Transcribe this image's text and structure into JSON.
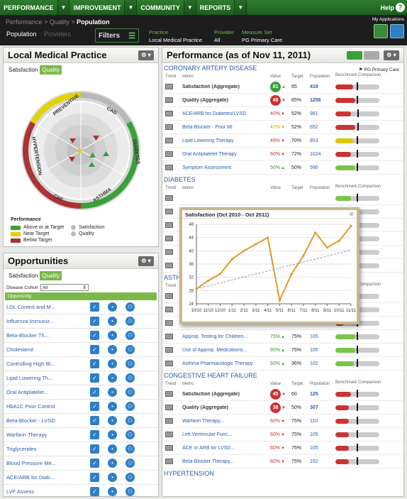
{
  "nav": {
    "items": [
      "PERFORMANCE",
      "IMPROVEMENT",
      "COMMUNITY",
      "REPORTS"
    ],
    "help": "Help",
    "help_icon": "?"
  },
  "breadcrumb": {
    "a": "Performance",
    "b": "Quality",
    "c": "Population"
  },
  "tabs": {
    "population": "Population",
    "providers": "Providers"
  },
  "filters": {
    "label": "Filters",
    "practice_label": "Practice",
    "practice_value": "Local Medical Practice",
    "provider_label": "Provider",
    "provider_value": "All",
    "measure_label": "Measure Set",
    "measure_value": "PG Primary Care"
  },
  "my_apps": "My Applications",
  "lmp": {
    "title": "Local Medical Practice",
    "tabs": [
      "Satisfaction",
      "Quality"
    ],
    "wheel_labels": [
      "PREVENTIVE",
      "CAD",
      "HYPERTENSION",
      "DIABETES",
      "CHF",
      "ASTHMA"
    ],
    "legend": {
      "title": "Performance",
      "above": "Above or at Target",
      "near": "Near Target",
      "below": "Below Target",
      "sat": "Satisfaction",
      "qual": "Quality"
    }
  },
  "opp": {
    "title": "Opportunities",
    "tabs": [
      "Satisfaction",
      "Quality"
    ],
    "cohort_label": "Disease Cohort",
    "cohort_value": "All",
    "header": "Opportunity",
    "items": [
      "LDL Control and M...",
      "Influenza Immuniz...",
      "Beta-Blocker Th...",
      "Cholesterol",
      "Controlling High Bl...",
      "Lipid Lowering Th...",
      "Oral Antiplatelet...",
      "HbA1C Poor Control",
      "Beta-Blocker - LVSD",
      "Warfarin Therapy",
      "Triglycerides",
      "Blood Pressure Me...",
      "ACE/ARB for Diab...",
      "LVF Assess"
    ]
  },
  "perf": {
    "title": "Performance (as of Nov 11, 2011)",
    "pg_tag": "PG Primary Care",
    "cols": [
      "Trend",
      "Metric",
      "Value",
      "Target",
      "Population",
      "Benchmark Comparison"
    ],
    "sections": [
      {
        "name": "CORONARY ARTERY DISEASE",
        "rows": [
          {
            "metric": "Satisfaction (Aggregate)",
            "value": "81",
            "badge": "g",
            "target": "65",
            "pop": "419",
            "bold": true,
            "fill": 0.4,
            "color": "#c33",
            "marker": 0.48
          },
          {
            "metric": "Quality (Aggregate)",
            "value": "48",
            "badge": "r",
            "target": "65%",
            "pop": "1258",
            "bold": true,
            "fill": 0.45,
            "color": "#c33",
            "marker": 0.48
          },
          {
            "metric": "ACE/ARB for Diabetes/LVSD",
            "value": "40%",
            "vc": "r",
            "target": "52%",
            "pop": "981",
            "fill": 0.35,
            "color": "#c33",
            "marker": 0.5
          },
          {
            "metric": "Beta-Blocker - Prior MI",
            "value": "47%",
            "vc": "y",
            "target": "52%",
            "pop": "652",
            "fill": 0.45,
            "color": "#c33",
            "marker": 0.5
          },
          {
            "metric": "Lipid Lowering Therapy",
            "value": "49%",
            "vc": "r",
            "target": "70%",
            "pop": "853",
            "fill": 0.4,
            "color": "#d8c800",
            "marker": 0.48
          },
          {
            "metric": "Oral Antiplatelet Therapy",
            "value": "60%",
            "vc": "r",
            "target": "72%",
            "pop": "1024",
            "fill": 0.35,
            "color": "#c33",
            "marker": 0.48
          },
          {
            "metric": "Symptom Assessment",
            "value": "50%",
            "vc": "g",
            "target": "50%",
            "pop": "590",
            "fill": 0.45,
            "color": "#7bc44a",
            "marker": 0.48
          }
        ]
      },
      {
        "name": "DIABETES",
        "rows": [
          {
            "metric": "",
            "value": "",
            "target": "",
            "pop": "",
            "fill": 0.35,
            "color": "#7bc44a",
            "marker": 0.48
          },
          {
            "metric": "",
            "value": "",
            "target": "",
            "pop": "",
            "fill": 0.3,
            "color": "#d8c800",
            "marker": 0.48
          },
          {
            "metric": "",
            "value": "",
            "target": "",
            "pop": "",
            "fill": 0.3,
            "color": "#d8c800",
            "marker": 0.48
          },
          {
            "metric": "",
            "value": "",
            "target": "",
            "pop": "",
            "fill": 0.3,
            "color": "#c33",
            "marker": 0.48
          },
          {
            "metric": "",
            "value": "",
            "target": "",
            "pop": "",
            "fill": 0.35,
            "color": "#d8c800",
            "marker": 0.48
          },
          {
            "metric": "",
            "value": "",
            "target": "",
            "pop": "",
            "fill": 0.3,
            "color": "#7bc44a",
            "marker": 0.48
          }
        ]
      },
      {
        "name": "ASTHMA",
        "rows": [
          {
            "metric": "",
            "value": "",
            "target": "",
            "pop": "",
            "fill": 0.35,
            "color": "#7bc44a",
            "marker": 0.48
          },
          {
            "metric": "",
            "value": "",
            "target": "",
            "pop": "",
            "fill": 0.3,
            "color": "#c33",
            "marker": 0.48
          },
          {
            "metric": "Asthma Assessment",
            "value": "10%",
            "vc": "y",
            "target": "15%",
            "pop": "110",
            "fill": 0.2,
            "color": "#c33",
            "marker": 0.48
          },
          {
            "metric": "Approp. Testing for Children...",
            "value": "75%",
            "vc": "g",
            "target": "75%",
            "pop": "105",
            "fill": 0.45,
            "color": "#7bc44a",
            "marker": 0.48
          },
          {
            "metric": "Use of Approp. Medications...",
            "value": "80%",
            "vc": "g",
            "target": "75%",
            "pop": "105",
            "fill": 0.45,
            "color": "#7bc44a",
            "marker": 0.48
          },
          {
            "metric": "Asthma Pharmacologic Therapy",
            "value": "60%",
            "vc": "g",
            "target": "36%",
            "pop": "102",
            "fill": 0.42,
            "color": "#7bc44a",
            "marker": 0.48
          }
        ]
      },
      {
        "name": "CONGESTIVE HEART FAILURE",
        "rows": [
          {
            "metric": "Satisfaction (Aggregate)",
            "value": "45",
            "badge": "r",
            "target": "60",
            "pop": "125",
            "bold": true,
            "fill": 0.35,
            "color": "#c33",
            "marker": 0.48
          },
          {
            "metric": "Quality (Aggregate)",
            "value": "38",
            "badge": "r",
            "target": "50%",
            "pop": "307",
            "bold": true,
            "fill": 0.3,
            "color": "#c33",
            "marker": 0.48
          },
          {
            "metric": "Warfarin Therapy...",
            "value": "60%",
            "vc": "r",
            "target": "75%",
            "pop": "110",
            "fill": 0.3,
            "color": "#c33",
            "marker": 0.48
          },
          {
            "metric": "Left Ventricular Func...",
            "value": "60%",
            "vc": "r",
            "target": "75%",
            "pop": "105",
            "fill": 0.3,
            "color": "#c33",
            "marker": 0.48
          },
          {
            "metric": "ACE or ARB for LVSD...",
            "value": "60%",
            "vc": "r",
            "target": "75%",
            "pop": "105",
            "fill": 0.3,
            "color": "#c33",
            "marker": 0.48
          },
          {
            "metric": "Beta-Blocker Therapy...",
            "value": "60%",
            "vc": "r",
            "target": "75%",
            "pop": "102",
            "fill": 0.3,
            "color": "#c33",
            "marker": 0.48
          }
        ]
      },
      {
        "name": "HYPERTENSION",
        "rows": []
      }
    ]
  },
  "popup": {
    "title": "Satisfaction (Oct 2010 - Oct 2011)",
    "close": "⊗"
  },
  "chart_data": {
    "type": "line",
    "title": "Satisfaction (Oct 2010 - Oct 2011)",
    "x": [
      "10/10",
      "11/10",
      "12/10",
      "1/11",
      "2/11",
      "3/11",
      "4/11",
      "5/11",
      "6/11",
      "7/11",
      "8/11",
      "9/11",
      "10/11",
      "11/11"
    ],
    "series": [
      {
        "values": [
          28.5,
          31,
          33,
          37.5,
          40,
          42,
          44,
          25,
          33,
          38.5,
          45.5,
          41,
          43,
          47.5
        ]
      },
      {
        "values": [
          28.5,
          29.4,
          30.3,
          31.2,
          32.1,
          33,
          33.9,
          34.8,
          35.7,
          36.6,
          37.5,
          38.4,
          39.3,
          40.2
        ]
      }
    ],
    "yticks": [
      24,
      28,
      32,
      36,
      40,
      44,
      48
    ],
    "ylim": [
      24,
      48
    ]
  }
}
